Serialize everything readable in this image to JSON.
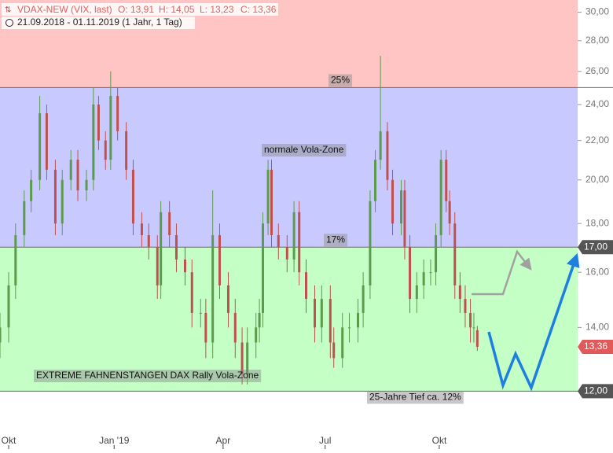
{
  "chart_data": {
    "type": "candlestick",
    "title": "VDAX-NEW (VIX, last)",
    "ohlc_labels": [
      "O: 13,91",
      "H: 14,05",
      "L: 13,23",
      "C: 13,36"
    ],
    "subtitle": "21.09.2018 - 01.11.2019 (1 Jahr, 1 Tag)",
    "log_scale": true,
    "ylim": [
      10.9,
      30.9
    ],
    "xlim": [
      0,
      334
    ],
    "yticks": [
      {
        "value": 30,
        "label": "30,00"
      },
      {
        "value": 28,
        "label": "28,00"
      },
      {
        "value": 26,
        "label": "26,00"
      },
      {
        "value": 24,
        "label": "24,00"
      },
      {
        "value": 22,
        "label": "22,00"
      },
      {
        "value": 20,
        "label": "20,00"
      },
      {
        "value": 18,
        "label": "18,00"
      },
      {
        "value": 16,
        "label": "16,00"
      },
      {
        "value": 14,
        "label": "14,00"
      }
    ],
    "xticks": [
      {
        "value": 5,
        "label": "Okt"
      },
      {
        "value": 66,
        "label": "Jan '19"
      },
      {
        "value": 129,
        "label": "Apr"
      },
      {
        "value": 188,
        "label": "Jul"
      },
      {
        "value": 254,
        "label": "Okt"
      }
    ],
    "zones": [
      {
        "from": 25,
        "to": 30.9,
        "color": "#ffc4c4"
      },
      {
        "from": 17,
        "to": 25,
        "color": "#c8caff"
      },
      {
        "from": 12,
        "to": 17,
        "color": "#c4ffc6"
      }
    ],
    "levels": [
      {
        "value": 25,
        "label": "25%"
      },
      {
        "value": 17,
        "label": "17%"
      },
      {
        "value": 12,
        "label": "25-Jahre Tief ca. 12%"
      }
    ],
    "annotations": [
      "normale Vola-Zone",
      "EXTREME FAHNENSTANGEN DAX Rally Vola-Zone"
    ],
    "markers": [
      {
        "value": 17,
        "label": "17,00",
        "color": "#555555"
      },
      {
        "value": 13.36,
        "label": "13,36",
        "color": "#e05a5a"
      },
      {
        "value": 12,
        "label": "12,00",
        "color": "#555555"
      }
    ],
    "up_color": "#5c9a4c",
    "down_color": "#c0504d",
    "x": [
      0,
      5,
      9,
      14,
      18,
      23,
      27,
      32,
      36,
      41,
      45,
      50,
      54,
      57,
      61,
      64,
      68,
      73,
      77,
      82,
      86,
      91,
      93,
      98,
      102,
      107,
      111,
      116,
      119,
      123,
      127,
      132,
      136,
      140,
      143,
      148,
      150,
      152,
      155,
      157,
      161,
      166,
      170,
      173,
      177,
      182,
      186,
      191,
      193,
      198,
      202,
      207,
      210,
      214,
      217,
      220,
      224,
      227,
      232,
      234,
      237,
      241,
      245,
      249,
      252,
      255,
      258,
      260,
      263,
      266,
      269,
      272,
      274,
      276
    ],
    "open": [
      13.5,
      14.0,
      15.5,
      17.5,
      19,
      20,
      23.5,
      20.5,
      18,
      20,
      21,
      19.5,
      20,
      24,
      22,
      21,
      24.5,
      22.5,
      20.5,
      18,
      17.5,
      17,
      15.5,
      18.5,
      17.5,
      16.5,
      16,
      14.5,
      14.5,
      13.5,
      17.5,
      15.5,
      14.5,
      13.5,
      12.5,
      13.5,
      14,
      14.5,
      18,
      20.5,
      17.5,
      17,
      16.5,
      18.5,
      16,
      15,
      14,
      15,
      13.5,
      13,
      14,
      14,
      14.5,
      15.5,
      19,
      21,
      22.5,
      20,
      18,
      19.5,
      17,
      15,
      15.5,
      16,
      16,
      17.5,
      21,
      19,
      18,
      15.5,
      15,
      14.5,
      14,
      13.91
    ],
    "high": [
      14.5,
      16,
      18,
      19.5,
      20.5,
      24.5,
      24,
      21,
      20.5,
      21.5,
      21.5,
      20.5,
      25,
      24.5,
      22.5,
      26,
      25,
      23,
      21,
      18.5,
      18,
      17.5,
      19,
      19,
      18,
      17,
      16.5,
      15,
      15,
      19.5,
      18,
      16,
      15,
      14,
      14,
      14.5,
      15,
      18.5,
      21,
      21,
      18,
      17.5,
      19,
      19,
      16.5,
      15.5,
      15.5,
      15.5,
      14,
      14.5,
      14.5,
      15,
      16,
      19.5,
      21.5,
      27,
      23,
      20.5,
      20,
      20,
      17.5,
      16,
      16.5,
      16.5,
      18,
      21.5,
      21.5,
      19.5,
      18.5,
      16,
      15.5,
      15,
      14.5,
      14.05
    ],
    "low": [
      13,
      13.5,
      15,
      17,
      18.5,
      19.5,
      20,
      17.5,
      17.5,
      19.5,
      19,
      19,
      19.5,
      21.5,
      20.5,
      20.5,
      22,
      20,
      17.5,
      17,
      16.5,
      15,
      15,
      17,
      16,
      15.5,
      14,
      14,
      13,
      13,
      15,
      14,
      13,
      12.2,
      12.2,
      13,
      13.5,
      14,
      17.5,
      17,
      16.5,
      16,
      16,
      15.5,
      14.5,
      13.5,
      13.5,
      13,
      12.7,
      12.7,
      13.5,
      13.5,
      14,
      15,
      18.5,
      20.5,
      19.5,
      17.5,
      17.5,
      16.5,
      14.5,
      14.5,
      15,
      15.5,
      15.5,
      17,
      18.5,
      17.5,
      15,
      14.5,
      14,
      13.5,
      13.5,
      13.23
    ],
    "close": [
      14.0,
      15.5,
      17.5,
      19,
      20,
      23.5,
      20.5,
      18,
      20,
      21,
      19.5,
      20,
      24,
      22,
      21,
      24.5,
      22.5,
      20.5,
      18,
      17.5,
      17,
      15.5,
      18.5,
      17.5,
      16.5,
      16,
      14.5,
      14.5,
      13.5,
      17.5,
      15.5,
      14.5,
      13.5,
      12.5,
      13.5,
      14,
      14.5,
      18,
      20.5,
      17.5,
      17,
      16.5,
      18.5,
      16,
      15,
      14,
      15,
      13.5,
      13,
      14,
      14,
      14.5,
      15.5,
      19,
      21,
      22.5,
      20,
      18,
      19.5,
      17,
      15,
      15.5,
      16,
      16,
      17.5,
      21,
      19,
      18,
      15.5,
      15,
      14.5,
      14,
      14,
      13.36
    ]
  }
}
